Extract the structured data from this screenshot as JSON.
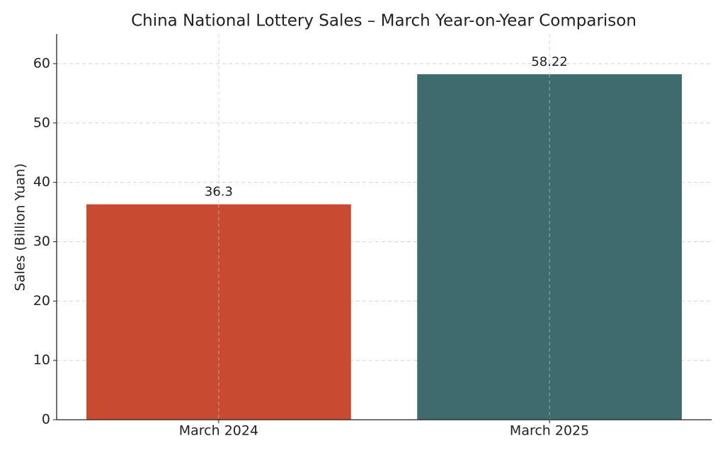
{
  "chart_data": {
    "type": "bar",
    "title": "China National Lottery Sales – March Year-on-Year Comparison",
    "y_label": "Sales (Billion Yuan)",
    "categories": [
      "March 2024",
      "March 2025"
    ],
    "values": [
      36.3,
      58.22
    ],
    "colors": [
      "#c84b31",
      "#3d6b6e"
    ],
    "ylim": [
      0,
      65
    ],
    "yticks": [
      0,
      10,
      20,
      30,
      40,
      50,
      60
    ],
    "grid": true
  }
}
